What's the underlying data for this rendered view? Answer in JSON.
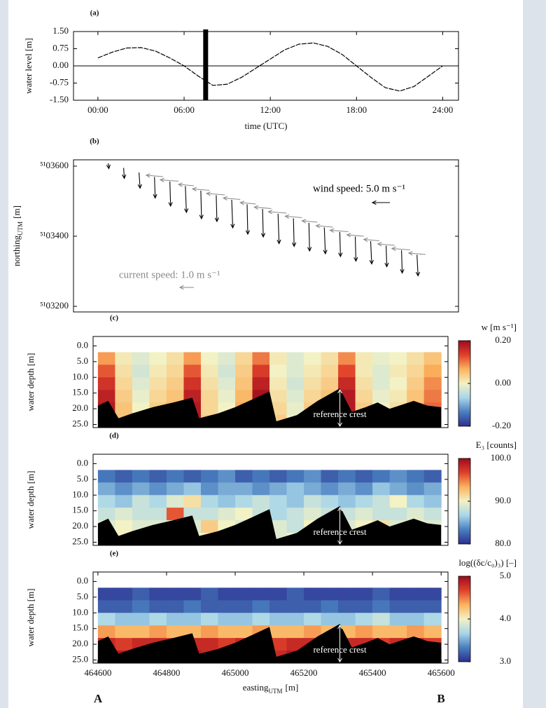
{
  "chart_data": [
    {
      "type": "line",
      "panel": "(a)",
      "xlabel": "time (UTC)",
      "ylabel": "water level [m]",
      "x": [
        0,
        1,
        2,
        3,
        4,
        5,
        6,
        7,
        8,
        9,
        10,
        11,
        12,
        13,
        14,
        15,
        16,
        17,
        18,
        19,
        20,
        21,
        22,
        23,
        24
      ],
      "values": [
        0.35,
        0.6,
        0.78,
        0.8,
        0.65,
        0.35,
        0.0,
        -0.45,
        -0.85,
        -0.8,
        -0.5,
        -0.1,
        0.3,
        0.7,
        0.95,
        1.0,
        0.85,
        0.5,
        0.0,
        -0.5,
        -0.95,
        -1.1,
        -0.9,
        -0.45,
        0.0
      ],
      "color": "#000000",
      "highlight_x": 7.5,
      "zero_line": true,
      "xlim": [
        -1.7,
        25.1
      ],
      "ylim": [
        -1.5,
        1.5
      ],
      "xticks": [
        {
          "value": 0,
          "label": "00:00"
        },
        {
          "value": 6,
          "label": "06:00"
        },
        {
          "value": 12,
          "label": "12:00"
        },
        {
          "value": 18,
          "label": "18:00"
        },
        {
          "value": 24,
          "label": "24:00"
        }
      ],
      "yticks": [
        {
          "value": 1.5,
          "label": "1.50"
        },
        {
          "value": 0.75,
          "label": "0.75"
        },
        {
          "value": 0,
          "label": "0.00"
        },
        {
          "value": -0.75,
          "label": "-0.75"
        },
        {
          "value": -1.5,
          "label": "-1.50"
        }
      ]
    },
    {
      "type": "quiver",
      "panel": "(b)",
      "ylabel": {
        "main": "northing",
        "sub": "UTM",
        "unit": "[m]"
      },
      "xlim": [
        464529,
        465651
      ],
      "ylim": [
        5103184,
        5103618
      ],
      "yticks": [
        {
          "value": 5103600,
          "label": "⁵¹03600"
        },
        {
          "value": 5103400,
          "label": "⁵¹03400"
        },
        {
          "value": 5103200,
          "label": "⁵¹03200"
        }
      ],
      "series": [
        {
          "name": "wind speed: 5.0 m s⁻¹",
          "color": "#000000",
          "ref": 5.0,
          "x": [
            464630,
            464675,
            464720,
            464765,
            464810,
            464855,
            464900,
            464945,
            464990,
            465035,
            465080,
            465125,
            465170,
            465215,
            465260,
            465305,
            465350,
            465395,
            465440,
            465485,
            465530
          ],
          "y": [
            5103608,
            5103595,
            5103582,
            5103569,
            5103556,
            5103543,
            5103530,
            5103517,
            5103504,
            5103491,
            5103478,
            5103464,
            5103451,
            5103438,
            5103425,
            5103412,
            5103399,
            5103386,
            5103373,
            5103360,
            5103347
          ],
          "u": [
            0.2,
            0.2,
            0.3,
            0.2,
            0.2,
            0.3,
            0.2,
            0.2,
            0.3,
            0.2,
            0.2,
            0.3,
            0.2,
            0.2,
            0.3,
            0.2,
            0.2,
            0.3,
            0.2,
            0.2,
            0.3
          ],
          "v": [
            -1.5,
            -3,
            -4.5,
            -6,
            -7,
            -7.5,
            -8,
            -7.5,
            -8,
            -8.5,
            -8,
            -8.5,
            -8,
            -8,
            -7.5,
            -7,
            -7,
            -6.5,
            -6,
            -6.5,
            -6
          ]
        },
        {
          "name": "current speed: 1.0 m s⁻¹",
          "color": "#8a8a8a",
          "ref": 1.0,
          "x": [
            464790,
            464835,
            464880,
            464925,
            464970,
            465015,
            465060,
            465105,
            465150,
            465195,
            465240,
            465285,
            465330,
            465375,
            465420,
            465465,
            465510,
            465555
          ],
          "y": [
            5103570,
            5103557,
            5103544,
            5103531,
            5103518,
            5103505,
            5103492,
            5103479,
            5103466,
            5103453,
            5103440,
            5103426,
            5103413,
            5103400,
            5103387,
            5103374,
            5103361,
            5103348
          ],
          "u": [
            -1.2,
            -1.3,
            -1.1,
            -1.2,
            -1.3,
            -1.2,
            -1.1,
            -1.2,
            -1.3,
            -1.2,
            -1.1,
            -1.2,
            -1.3,
            -1.2,
            -1.1,
            -1.2,
            -1.3,
            -1.2
          ],
          "v": [
            0.1,
            0.1,
            0.1,
            0.1,
            0.1,
            0.1,
            0.1,
            0.1,
            0.1,
            0.1,
            0.1,
            0.1,
            0.1,
            0.1,
            0.1,
            0.1,
            0.1,
            0.1
          ]
        }
      ]
    },
    {
      "type": "heatmap",
      "panel": "(c)",
      "ylabel": "water depth [m]",
      "colorbar_label": "w [m s⁻¹]",
      "xlim": [
        464586,
        465620
      ],
      "ylim": [
        -3,
        26
      ],
      "y_inverted": true,
      "yticks": [
        {
          "value": 0,
          "label": "0.0"
        },
        {
          "value": 5,
          "label": "5.0"
        },
        {
          "value": 10,
          "label": "10.0"
        },
        {
          "value": 15,
          "label": "15.0"
        },
        {
          "value": 20,
          "label": "20.0"
        },
        {
          "value": 25,
          "label": "25.0"
        }
      ],
      "x_edges": [
        464600,
        464650,
        464700,
        464750,
        464800,
        464850,
        464900,
        464950,
        465000,
        465050,
        465100,
        465150,
        465200,
        465250,
        465300,
        465350,
        465400,
        465450,
        465500,
        465550,
        465600
      ],
      "y_edges": [
        2,
        6,
        10,
        14,
        18,
        22,
        26
      ],
      "z": [
        [
          0.08,
          0.01,
          -0.02,
          0.0,
          0.02,
          0.08,
          0.0,
          -0.02,
          0.03,
          0.1,
          0.01,
          -0.02,
          0.0,
          0.02,
          0.09,
          0.01,
          -0.01,
          0.0,
          0.02,
          0.05
        ],
        [
          0.12,
          0.02,
          -0.03,
          0.01,
          0.03,
          0.12,
          0.01,
          -0.03,
          0.04,
          0.14,
          0.0,
          -0.02,
          0.01,
          0.03,
          0.13,
          0.01,
          -0.02,
          0.01,
          0.03,
          0.07
        ],
        [
          0.15,
          0.03,
          -0.02,
          0.02,
          0.04,
          0.15,
          0.02,
          -0.02,
          0.05,
          0.17,
          0.01,
          -0.03,
          0.02,
          0.04,
          0.16,
          0.02,
          -0.02,
          0.0,
          0.04,
          0.09
        ],
        [
          0.17,
          0.04,
          -0.01,
          0.03,
          0.05,
          0.17,
          0.03,
          -0.01,
          0.06,
          0.19,
          0.02,
          -0.02,
          0.03,
          0.05,
          0.18,
          0.03,
          -0.01,
          0.01,
          0.05,
          0.1
        ],
        [
          0.18,
          0.05,
          0.0,
          0.04,
          0.06,
          0.18,
          0.03,
          0.0,
          0.07,
          0.2,
          0.03,
          -0.01,
          0.04,
          0.06,
          0.18,
          0.04,
          0.0,
          0.02,
          0.06,
          0.11
        ],
        [
          0.18,
          0.05,
          0.01,
          0.05,
          0.06,
          0.18,
          0.04,
          0.01,
          0.08,
          0.2,
          0.04,
          0.0,
          0.05,
          0.06,
          0.18,
          0.05,
          0.01,
          0.03,
          0.06,
          0.11
        ]
      ],
      "zlim": [
        -0.2,
        0.2
      ],
      "zticks": [
        {
          "value": 0.2,
          "label": "0.20"
        },
        {
          "value": 0,
          "label": "0.00"
        },
        {
          "value": -0.2,
          "label": "-0.20"
        }
      ],
      "colormap": [
        "#2c2f8f",
        "#4a7fc0",
        "#a9d6ea",
        "#f3f2c4",
        "#fbb35e",
        "#e0402a",
        "#9e0a1e"
      ],
      "bed": {
        "x": [
          464600,
          464630,
          464660,
          464700,
          464760,
          464820,
          464875,
          464895,
          464950,
          465000,
          465050,
          465100,
          465120,
          465180,
          465240,
          465305,
          465340,
          465380,
          465415,
          465450,
          465520,
          465560,
          465600
        ],
        "depth": [
          19,
          17.5,
          23,
          21.5,
          19.5,
          18,
          16.5,
          23,
          21.5,
          19.5,
          17,
          14.5,
          24,
          22,
          17.5,
          13.5,
          21,
          19.5,
          18,
          20,
          17.5,
          19,
          19.5
        ]
      },
      "crest": {
        "label": "reference crest",
        "x": 465305
      }
    },
    {
      "type": "heatmap",
      "panel": "(d)",
      "ylabel": "water depth [m]",
      "colorbar_label": "E₃ [counts]",
      "xlim": [
        464586,
        465620
      ],
      "ylim": [
        -3,
        26
      ],
      "y_inverted": true,
      "yticks": [
        {
          "value": 0,
          "label": "0.0"
        },
        {
          "value": 5,
          "label": "5.0"
        },
        {
          "value": 10,
          "label": "10.0"
        },
        {
          "value": 15,
          "label": "15.0"
        },
        {
          "value": 20,
          "label": "20.0"
        },
        {
          "value": 25,
          "label": "25.0"
        }
      ],
      "x_edges": [
        464600,
        464650,
        464700,
        464750,
        464800,
        464850,
        464900,
        464950,
        465000,
        465050,
        465100,
        465150,
        465200,
        465250,
        465300,
        465350,
        465400,
        465450,
        465500,
        465550,
        465600
      ],
      "y_edges": [
        2,
        6,
        10,
        14,
        18,
        22,
        26
      ],
      "z": [
        [
          83,
          82,
          83,
          82,
          83,
          82,
          83,
          84,
          82,
          83,
          82,
          83,
          84,
          82,
          83,
          82,
          83,
          84,
          83,
          82
        ],
        [
          85,
          84,
          85,
          84,
          85,
          86,
          84,
          85,
          85,
          84,
          85,
          86,
          85,
          84,
          85,
          84,
          86,
          85,
          84,
          85
        ],
        [
          87,
          86,
          88,
          87,
          89,
          91,
          87,
          86,
          87,
          88,
          87,
          86,
          88,
          87,
          86,
          87,
          88,
          90,
          87,
          86
        ],
        [
          88,
          89,
          88,
          88,
          96,
          88,
          88,
          89,
          90,
          88,
          87,
          88,
          89,
          88,
          88,
          89,
          88,
          88,
          89,
          88
        ],
        [
          89,
          90,
          89,
          89,
          89,
          89,
          92,
          90,
          89,
          90,
          89,
          88,
          90,
          89,
          89,
          90,
          91,
          89,
          90,
          89
        ],
        [
          90,
          90,
          89,
          90,
          90,
          90,
          90,
          91,
          90,
          90,
          89,
          90,
          90,
          90,
          90,
          90,
          90,
          90,
          90,
          90
        ]
      ],
      "zlim": [
        80,
        100
      ],
      "zticks": [
        {
          "value": 100,
          "label": "100.0"
        },
        {
          "value": 90,
          "label": "90.0"
        },
        {
          "value": 80,
          "label": "80.0"
        }
      ],
      "colormap": [
        "#2c2f8f",
        "#4a7fc0",
        "#a9d6ea",
        "#f3f2c4",
        "#fbb35e",
        "#e0402a",
        "#9e0a1e"
      ],
      "bed": {
        "x": [
          464600,
          464630,
          464660,
          464700,
          464760,
          464820,
          464875,
          464895,
          464950,
          465000,
          465050,
          465100,
          465120,
          465180,
          465240,
          465305,
          465340,
          465380,
          465415,
          465450,
          465520,
          465560,
          465600
        ],
        "depth": [
          19,
          17.5,
          23,
          21.5,
          19.5,
          18,
          16.5,
          23,
          21.5,
          19.5,
          17,
          14.5,
          24,
          22,
          17.5,
          13.5,
          21,
          19.5,
          18,
          20,
          17.5,
          19,
          19.5
        ]
      },
      "crest": {
        "label": "reference crest",
        "x": 465305
      }
    },
    {
      "type": "heatmap",
      "panel": "(e)",
      "ylabel": "water depth [m]",
      "colorbar_label": "log((δc/c₀)₃) [–]",
      "xlabel": {
        "main": "easting",
        "sub": "UTM",
        "unit": "[m]"
      },
      "xlim": [
        464586,
        465620
      ],
      "ylim": [
        -3,
        26
      ],
      "y_inverted": true,
      "xticks": [
        464600,
        464800,
        465000,
        465200,
        465400,
        465600
      ],
      "yticks": [
        {
          "value": 0,
          "label": "0.0"
        },
        {
          "value": 5,
          "label": "5.0"
        },
        {
          "value": 10,
          "label": "10.0"
        },
        {
          "value": 15,
          "label": "15.0"
        },
        {
          "value": 20,
          "label": "20.0"
        },
        {
          "value": 25,
          "label": "25.0"
        }
      ],
      "x_edges": [
        464600,
        464650,
        464700,
        464750,
        464800,
        464850,
        464900,
        464950,
        465000,
        465050,
        465100,
        465150,
        465200,
        465250,
        465300,
        465350,
        465400,
        465450,
        465500,
        465550,
        465600
      ],
      "y_edges": [
        2,
        6,
        10,
        14,
        18,
        22,
        26
      ],
      "z": [
        [
          3.1,
          3.1,
          3.2,
          3.1,
          3.1,
          3.1,
          3.2,
          3.1,
          3.1,
          3.1,
          3.1,
          3.2,
          3.1,
          3.1,
          3.1,
          3.1,
          3.2,
          3.1,
          3.1,
          3.1
        ],
        [
          3.2,
          3.2,
          3.3,
          3.2,
          3.2,
          3.3,
          3.2,
          3.2,
          3.2,
          3.3,
          3.2,
          3.2,
          3.2,
          3.3,
          3.2,
          3.2,
          3.3,
          3.2,
          3.2,
          3.2
        ],
        [
          3.7,
          3.6,
          3.6,
          3.7,
          3.6,
          3.6,
          3.7,
          3.6,
          3.6,
          3.7,
          3.6,
          3.6,
          3.7,
          3.6,
          3.6,
          3.7,
          3.8,
          3.6,
          3.6,
          3.7
        ],
        [
          4.4,
          4.3,
          4.3,
          4.4,
          4.3,
          4.3,
          4.4,
          4.3,
          4.3,
          4.4,
          4.3,
          4.3,
          4.4,
          4.3,
          4.3,
          4.4,
          4.3,
          4.3,
          4.4,
          4.3
        ],
        [
          4.8,
          4.7,
          4.8,
          4.8,
          4.7,
          4.8,
          4.8,
          4.7,
          4.8,
          4.8,
          4.7,
          4.8,
          4.8,
          4.7,
          4.8,
          4.8,
          4.7,
          4.8,
          4.8,
          4.7
        ],
        [
          4.9,
          4.9,
          4.8,
          4.9,
          4.9,
          4.9,
          4.8,
          4.9,
          4.9,
          4.9,
          4.8,
          4.9,
          4.9,
          4.9,
          4.8,
          4.9,
          4.9,
          4.9,
          4.8,
          4.9
        ]
      ],
      "zlim": [
        3,
        5
      ],
      "zticks": [
        {
          "value": 5,
          "label": "5.0"
        },
        {
          "value": 4,
          "label": "4.0"
        },
        {
          "value": 3,
          "label": "3.0"
        }
      ],
      "colormap": [
        "#2c2f8f",
        "#4a7fc0",
        "#a9d6ea",
        "#f3f2c4",
        "#fbb35e",
        "#e0402a",
        "#9e0a1e"
      ],
      "bed": {
        "x": [
          464600,
          464630,
          464660,
          464700,
          464760,
          464820,
          464875,
          464895,
          464950,
          465000,
          465050,
          465100,
          465120,
          465180,
          465240,
          465305,
          465340,
          465380,
          465415,
          465450,
          465520,
          465560,
          465600
        ],
        "depth": [
          19,
          17.5,
          23,
          21.5,
          19.5,
          18,
          16.5,
          23,
          21.5,
          19.5,
          17,
          14.5,
          24,
          22,
          17.5,
          13.5,
          21,
          19.5,
          18,
          20,
          17.5,
          19,
          19.5
        ]
      },
      "crest": {
        "label": "reference crest",
        "x": 465305
      }
    }
  ],
  "section_ends": {
    "start": "A",
    "end": "B"
  }
}
